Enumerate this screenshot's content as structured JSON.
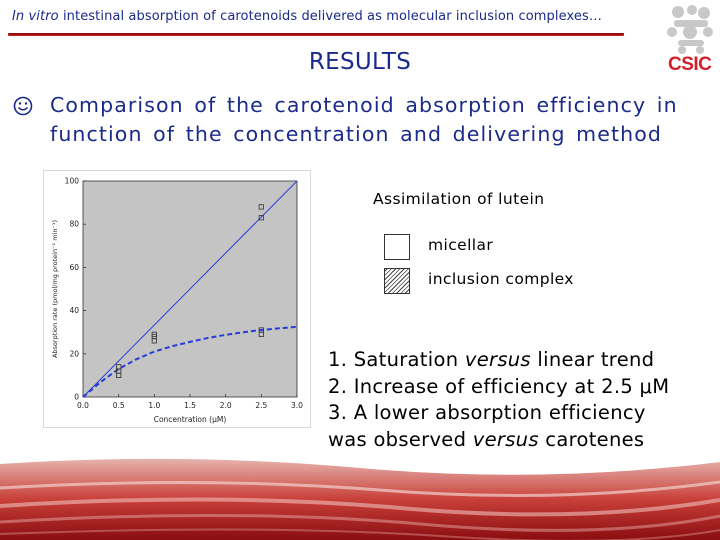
{
  "header": {
    "title_italic": "In vitro",
    "title_rest": " intestinal absorption of carotenoids delivered as molecular inclusion complexes…"
  },
  "logo": {
    "text": "CSIC"
  },
  "slide": {
    "title": "RESULTS",
    "bullet": "Comparison of the carotenoid absorption efficiency in function of the concentration and delivering method"
  },
  "legend": {
    "title": "Assimilation of lutein",
    "items": [
      {
        "label": "micellar"
      },
      {
        "label": "inclusion complex"
      }
    ]
  },
  "conclusions": {
    "line1": "1. Saturation ",
    "line1_italic": "versus",
    "line1_end": " linear trend",
    "line2": "2. Increase of efficiency at 2.5 μM",
    "line3": "3. A lower absorption efficiency",
    "line4": "was observed ",
    "line4_italic": "versus",
    "line4_end": " carotenes"
  },
  "colors": {
    "title_blue": "#1a2a8a",
    "rule_red": "#c92020",
    "logo_red": "#d0202a",
    "plot_bg": "#c4c4c4",
    "line_blue": "#2a3cd8"
  },
  "chart_data": {
    "type": "scatter",
    "xlabel": "Concentration (μM)",
    "ylabel": "Absorption rate (pmol/mg protein⁻¹ min⁻¹)",
    "xlim": [
      0.0,
      3.0
    ],
    "ylim": [
      0,
      100
    ],
    "xticks": [
      "0.0",
      "0.5",
      "1.0",
      "1.5",
      "2.0",
      "2.5",
      "3.0"
    ],
    "yticks": [
      "0",
      "20",
      "40",
      "60",
      "80",
      "100"
    ],
    "grid": false,
    "series": [
      {
        "name": "inclusion complex",
        "style": "solid",
        "points": [
          [
            0.5,
            14
          ],
          [
            1.0,
            29
          ],
          [
            2.5,
            88
          ],
          [
            2.5,
            83
          ]
        ],
        "fit": [
          [
            0.0,
            0
          ],
          [
            3.0,
            100
          ]
        ]
      },
      {
        "name": "micellar",
        "style": "dashed",
        "points": [
          [
            0.5,
            10
          ],
          [
            0.5,
            12
          ],
          [
            1.0,
            26
          ],
          [
            1.0,
            28
          ],
          [
            2.5,
            29
          ],
          [
            2.5,
            31
          ]
        ],
        "fit": [
          [
            0.0,
            0
          ],
          [
            0.25,
            7
          ],
          [
            0.5,
            13
          ],
          [
            0.75,
            17.5
          ],
          [
            1.0,
            21
          ],
          [
            1.25,
            23.5
          ],
          [
            1.5,
            25.5
          ],
          [
            1.75,
            27.3
          ],
          [
            2.0,
            28.8
          ],
          [
            2.25,
            30
          ],
          [
            2.5,
            31
          ],
          [
            2.75,
            31.8
          ],
          [
            3.0,
            32.5
          ]
        ]
      }
    ]
  }
}
